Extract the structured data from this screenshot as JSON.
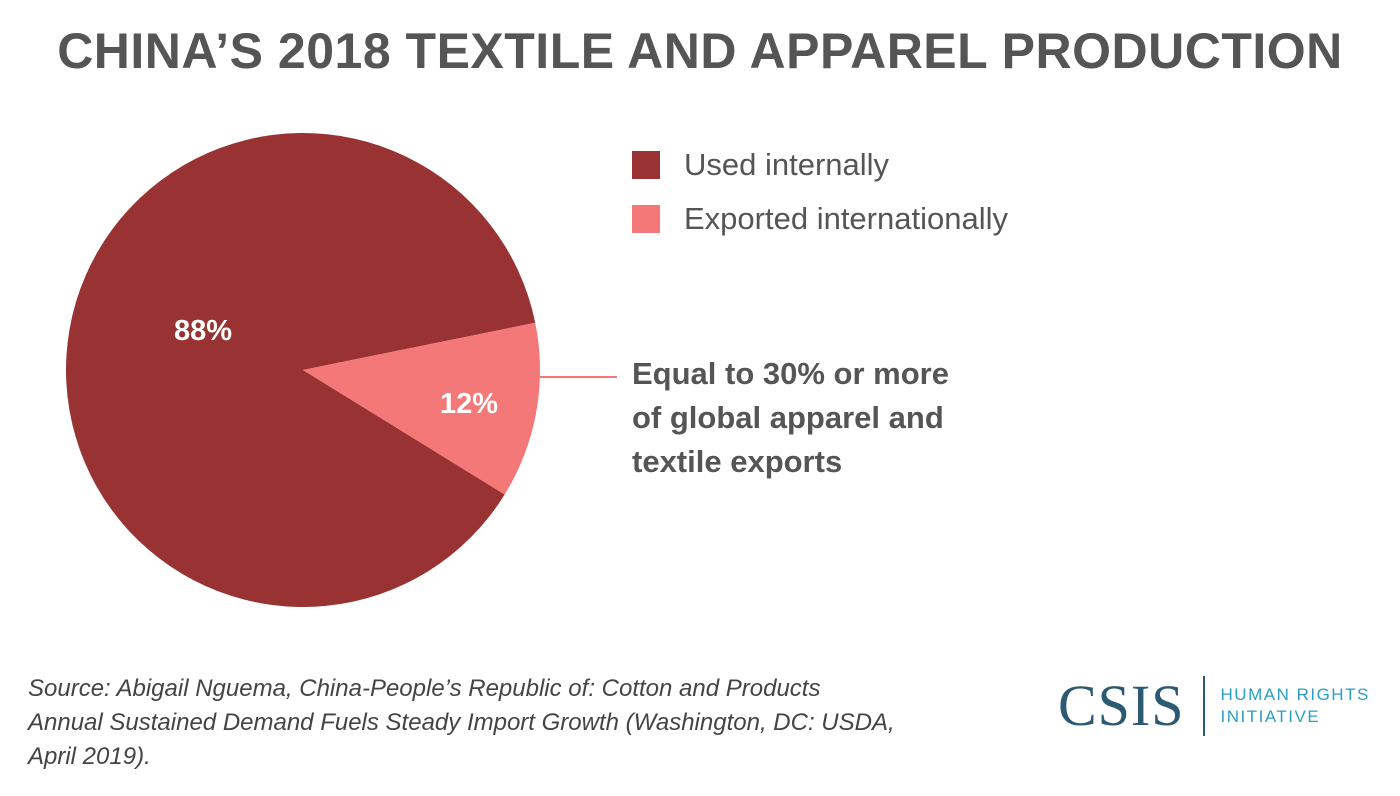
{
  "title": "CHINA’S 2018 TEXTILE AND APPAREL PRODUCTION",
  "chart_data": {
    "type": "pie",
    "slices": [
      {
        "name": "Used internally",
        "value": 88,
        "label": "88%",
        "color": "#993333"
      },
      {
        "name": "Exported internationally",
        "value": 12,
        "label": "12%",
        "color": "#f57878"
      }
    ]
  },
  "legend": [
    {
      "label": "Used internally",
      "color": "#993333"
    },
    {
      "label": "Exported internationally",
      "color": "#f57878"
    }
  ],
  "annotation": {
    "lines": [
      "Equal to 30% or more",
      "of global apparel and",
      "textile exports"
    ],
    "line_color": "#f57878"
  },
  "source": {
    "lines": [
      "Source: Abigail Nguema, China-People’s Republic of: Cotton and Products",
      "Annual Sustained Demand Fuels Steady Import Growth (Washington, DC: USDA,",
      "April 2019)."
    ]
  },
  "logo": {
    "mark": "CSIS",
    "sub_lines": [
      "HUMAN RIGHTS",
      "INITIATIVE"
    ],
    "colors": {
      "mark": "#2d5a73",
      "sub": "#2a9fc4"
    }
  }
}
